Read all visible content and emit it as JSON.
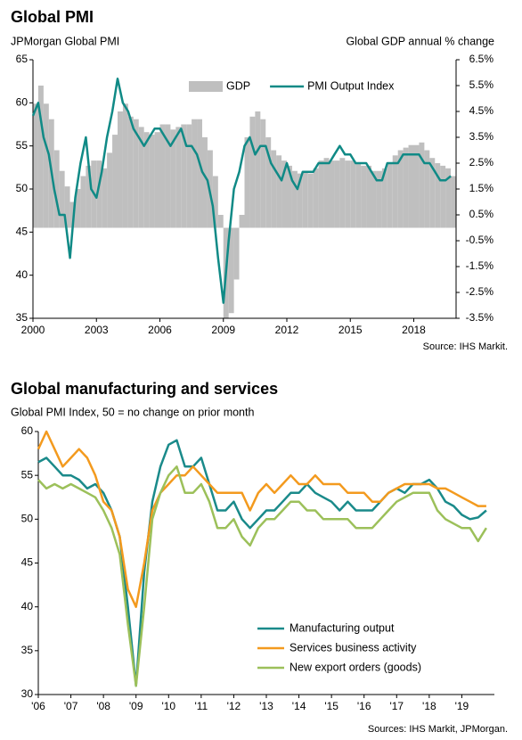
{
  "chart_data": [
    {
      "type": "combo",
      "title": "Global PMI",
      "y_label": "JPMorgan Global PMI",
      "y2_label": "Global GDP annual % change",
      "source": "Source: IHS Markit.",
      "legend": "upper right",
      "xlim": [
        2000,
        2020
      ],
      "xticks": [
        2000,
        2003,
        2006,
        2009,
        2012,
        2015,
        2018
      ],
      "ylim": [
        35,
        65
      ],
      "yticks": [
        35,
        40,
        45,
        50,
        55,
        60,
        65
      ],
      "y2lim": [
        -3.5,
        6.5
      ],
      "y2ticks": [
        {
          "value": -3.5,
          "label": "-3.5%"
        },
        {
          "value": -2.5,
          "label": "-2.5%"
        },
        {
          "value": -1.5,
          "label": "-1.5%"
        },
        {
          "value": -0.5,
          "label": "-0.5%"
        },
        {
          "value": 0.5,
          "label": "0.5%"
        },
        {
          "value": 1.5,
          "label": "1.5%"
        },
        {
          "value": 2.5,
          "label": "2.5%"
        },
        {
          "value": 3.5,
          "label": "3.5%"
        },
        {
          "value": 4.5,
          "label": "4.5%"
        },
        {
          "value": 5.5,
          "label": "5.5%"
        },
        {
          "value": 6.5,
          "label": "6.5%"
        }
      ],
      "x": [
        2000,
        2000.25,
        2000.5,
        2000.75,
        2001,
        2001.25,
        2001.5,
        2001.75,
        2002,
        2002.25,
        2002.5,
        2002.75,
        2003,
        2003.25,
        2003.5,
        2003.75,
        2004,
        2004.25,
        2004.5,
        2004.75,
        2005,
        2005.25,
        2005.5,
        2005.75,
        2006,
        2006.25,
        2006.5,
        2006.75,
        2007,
        2007.25,
        2007.5,
        2007.75,
        2008,
        2008.25,
        2008.5,
        2008.75,
        2009,
        2009.25,
        2009.5,
        2009.75,
        2010,
        2010.25,
        2010.5,
        2010.75,
        2011,
        2011.25,
        2011.5,
        2011.75,
        2012,
        2012.25,
        2012.5,
        2012.75,
        2013,
        2013.25,
        2013.5,
        2013.75,
        2014,
        2014.25,
        2014.5,
        2014.75,
        2015,
        2015.25,
        2015.5,
        2015.75,
        2016,
        2016.25,
        2016.5,
        2016.75,
        2017,
        2017.25,
        2017.5,
        2017.75,
        2018,
        2018.25,
        2018.5,
        2018.75,
        2019,
        2019.25,
        2019.5,
        2019.75
      ],
      "series": [
        {
          "name": "GDP",
          "type": "bar",
          "axis": "y2",
          "color": "#bfbfbf",
          "values": [
            4.8,
            5.5,
            4.8,
            4.2,
            3.0,
            2.2,
            1.6,
            1.0,
            1.5,
            2.0,
            2.4,
            2.6,
            2.6,
            2.3,
            2.9,
            3.6,
            4.5,
            4.8,
            4.3,
            4.2,
            3.9,
            3.7,
            3.6,
            3.7,
            4.0,
            4.0,
            3.8,
            3.9,
            4.0,
            4.0,
            4.2,
            4.2,
            3.5,
            3.0,
            2.0,
            0.5,
            -3.5,
            -3.3,
            -2.0,
            0.5,
            3.5,
            4.3,
            4.5,
            4.2,
            3.5,
            3.0,
            2.8,
            2.6,
            2.4,
            2.2,
            2.1,
            2.2,
            2.1,
            2.3,
            2.6,
            2.7,
            2.6,
            2.6,
            2.7,
            2.6,
            2.6,
            2.5,
            2.4,
            2.4,
            2.2,
            2.2,
            2.3,
            2.5,
            2.8,
            3.0,
            3.1,
            3.2,
            3.2,
            3.3,
            3.0,
            2.7,
            2.5,
            2.4,
            2.3,
            2.0
          ]
        },
        {
          "name": "PMI Output Index",
          "type": "line",
          "color": "#108a86",
          "values": [
            58.5,
            60,
            56,
            54,
            50,
            47,
            47,
            42,
            49,
            53,
            56,
            50,
            49,
            52,
            56,
            59,
            62.8,
            60,
            59,
            57,
            56,
            55,
            56,
            57,
            57,
            56,
            55,
            56,
            57,
            55,
            55,
            54,
            52,
            51,
            48,
            42,
            36.8,
            44,
            50,
            52,
            55,
            56,
            54,
            55,
            55,
            53,
            52,
            51,
            53,
            51,
            50,
            52,
            52,
            52,
            53,
            53,
            53,
            54,
            55,
            54,
            54,
            53,
            53,
            53,
            52,
            51,
            51,
            53,
            53,
            53,
            54,
            54,
            54,
            54,
            53,
            53,
            52,
            51,
            51,
            51.5
          ]
        }
      ]
    },
    {
      "type": "line",
      "title": "Global manufacturing and services",
      "subtitle": "Global PMI Index, 50 = no change on prior month",
      "source": "Sources: IHS Markit, JPMorgan.",
      "legend": "lower right",
      "xlim": [
        2006,
        2020
      ],
      "xticks": [
        {
          "value": 2006,
          "label": "'06"
        },
        {
          "value": 2007,
          "label": "'07"
        },
        {
          "value": 2008,
          "label": "'08"
        },
        {
          "value": 2009,
          "label": "'09"
        },
        {
          "value": 2010,
          "label": "'10"
        },
        {
          "value": 2011,
          "label": "'11"
        },
        {
          "value": 2012,
          "label": "'12"
        },
        {
          "value": 2013,
          "label": "'13"
        },
        {
          "value": 2014,
          "label": "'14"
        },
        {
          "value": 2015,
          "label": "'15"
        },
        {
          "value": 2016,
          "label": "'16"
        },
        {
          "value": 2017,
          "label": "'17"
        },
        {
          "value": 2018,
          "label": "'18"
        },
        {
          "value": 2019,
          "label": "'19"
        }
      ],
      "ylim": [
        30,
        60
      ],
      "yticks": [
        30,
        35,
        40,
        45,
        50,
        55,
        60
      ],
      "x": [
        2006,
        2006.25,
        2006.5,
        2006.75,
        2007,
        2007.25,
        2007.5,
        2007.75,
        2008,
        2008.25,
        2008.5,
        2008.75,
        2009,
        2009.25,
        2009.5,
        2009.75,
        2010,
        2010.25,
        2010.5,
        2010.75,
        2011,
        2011.25,
        2011.5,
        2011.75,
        2012,
        2012.25,
        2012.5,
        2012.75,
        2013,
        2013.25,
        2013.5,
        2013.75,
        2014,
        2014.25,
        2014.5,
        2014.75,
        2015,
        2015.25,
        2015.5,
        2015.75,
        2016,
        2016.25,
        2016.5,
        2016.75,
        2017,
        2017.25,
        2017.5,
        2017.75,
        2018,
        2018.25,
        2018.5,
        2018.75,
        2019,
        2019.25,
        2019.5,
        2019.75
      ],
      "series": [
        {
          "name": "Manufacturing output",
          "color": "#1a8a8a",
          "values": [
            56.5,
            57,
            56,
            55,
            55,
            54.5,
            53.5,
            54,
            53,
            51,
            48,
            40,
            31,
            44,
            52,
            56,
            58.5,
            59,
            56,
            56,
            57,
            54,
            51,
            51,
            52,
            50,
            49,
            50,
            51,
            51,
            52,
            53,
            53,
            54,
            53,
            52.5,
            52,
            51,
            52,
            51,
            51,
            51,
            52,
            53,
            53.5,
            53,
            54,
            54,
            54.5,
            53.5,
            52,
            51.5,
            50.5,
            50,
            50.2,
            51
          ]
        },
        {
          "name": "Services business activity",
          "color": "#f39a1e",
          "values": [
            58,
            60,
            58,
            56,
            57,
            58,
            57,
            55,
            52,
            51,
            48,
            42,
            40,
            45,
            51,
            53,
            54,
            55,
            55,
            56,
            55,
            54,
            53,
            53,
            53,
            53,
            51,
            53,
            54,
            53,
            54,
            55,
            54,
            54,
            55,
            54,
            54,
            54,
            53,
            53,
            53,
            52,
            52,
            53,
            53.5,
            54,
            54,
            54,
            54,
            53.5,
            53.5,
            53,
            52.5,
            52,
            51.5,
            51.5
          ]
        },
        {
          "name": "New export orders (goods)",
          "color": "#9cc05a",
          "values": [
            54.5,
            53.5,
            54,
            53.5,
            54,
            53.5,
            53,
            52.5,
            51,
            49,
            46,
            38,
            31,
            40,
            50,
            53,
            55,
            56,
            53,
            53,
            54,
            52,
            49,
            49,
            50,
            48,
            47,
            49,
            50,
            50,
            51,
            52,
            52,
            51,
            51,
            50,
            50,
            50,
            50,
            49,
            49,
            49,
            50,
            51,
            52,
            52.5,
            53,
            53,
            53,
            51,
            50,
            49.5,
            49,
            49,
            47.5,
            49
          ]
        }
      ]
    }
  ]
}
